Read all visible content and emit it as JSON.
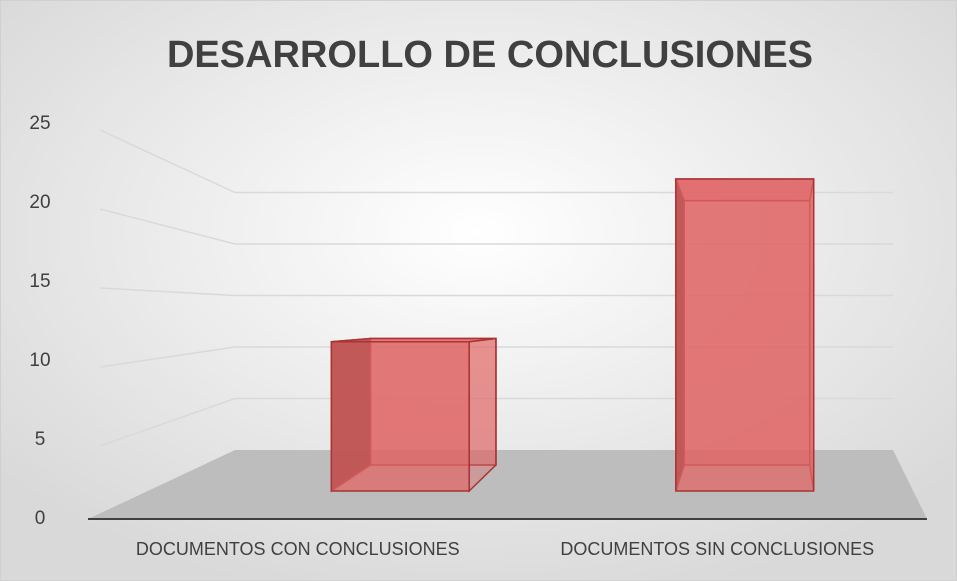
{
  "chart_data": {
    "type": "bar3d",
    "title": "DESARROLLO DE CONCLUSIONES",
    "categories": [
      "DOCUMENTOS CON CONCLUSIONES",
      "DOCUMENTOS SIN CONCLUSIONES"
    ],
    "values": [
      11,
      23
    ],
    "color": "#e06666",
    "ylim": [
      0,
      25
    ],
    "yticks": [
      0,
      5,
      10,
      15,
      20,
      25
    ],
    "grid": true
  }
}
